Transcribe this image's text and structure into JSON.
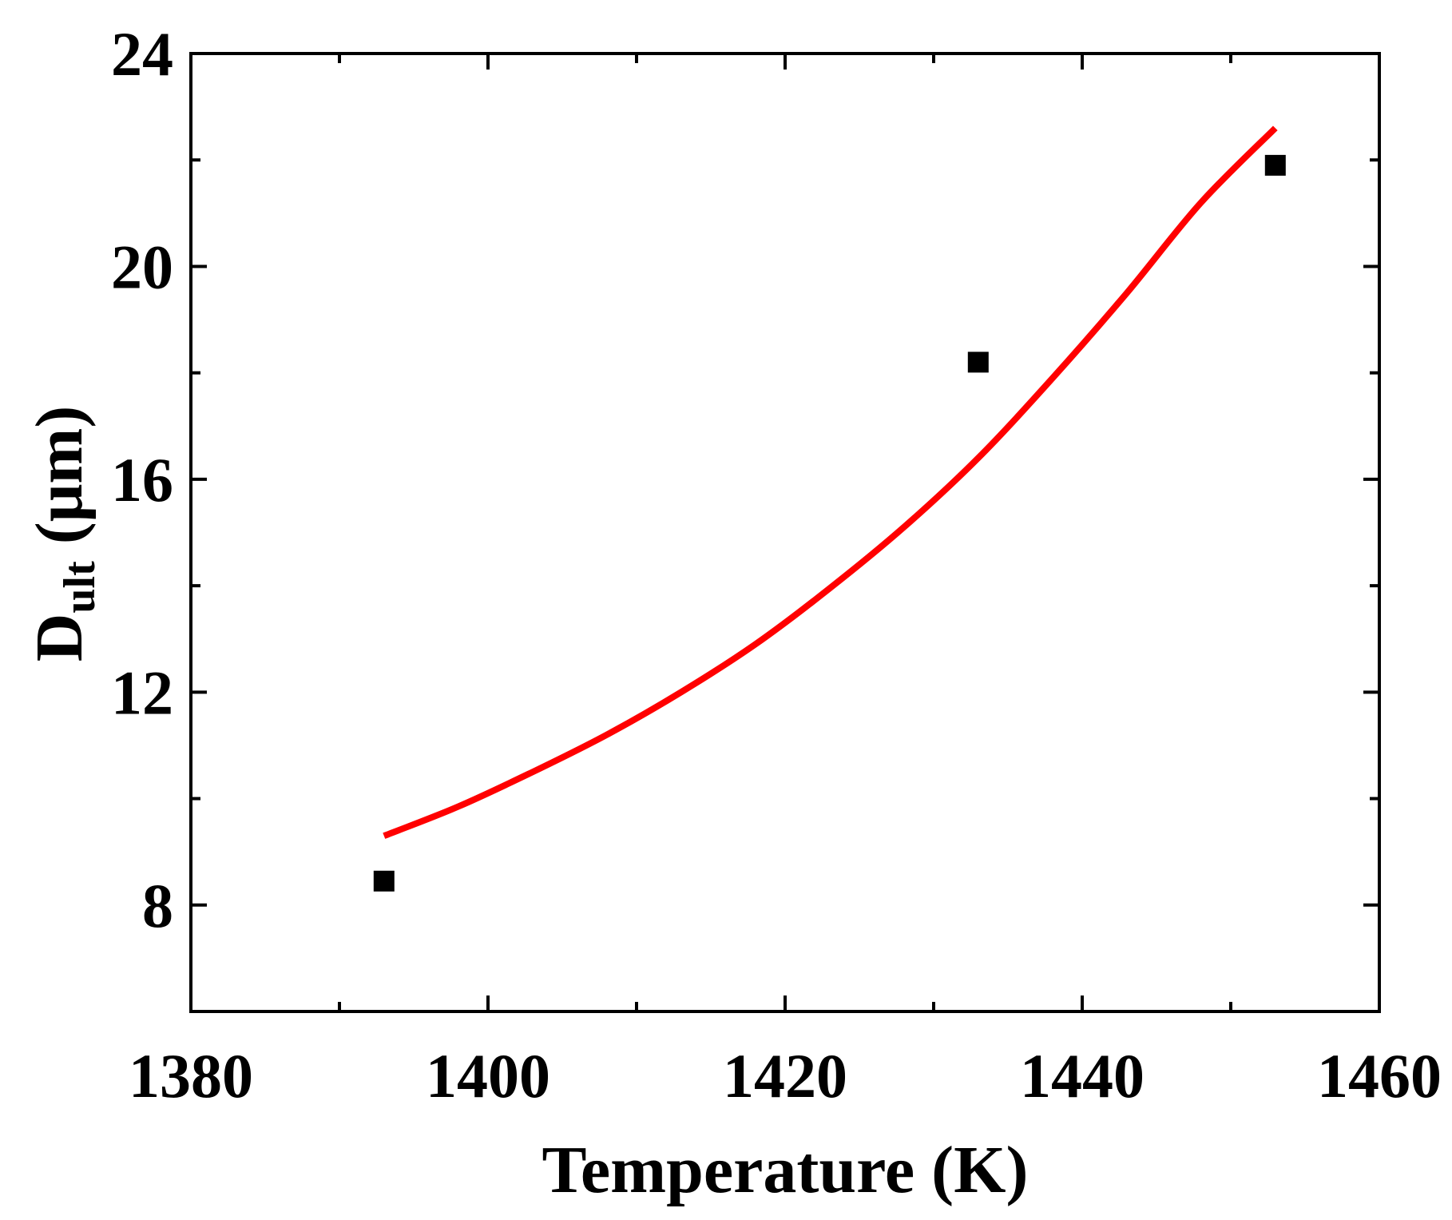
{
  "chart_data": {
    "type": "scatter",
    "title": "",
    "xlabel": "Temperature (K)",
    "ylabel": {
      "main": "D",
      "subscript": "ult",
      "unit": " (μm)"
    },
    "xlim": [
      1380,
      1460
    ],
    "ylim": [
      6,
      24
    ],
    "x_major_ticks": [
      1380,
      1400,
      1420,
      1440,
      1460
    ],
    "x_minor_ticks": [
      1390,
      1410,
      1430,
      1450
    ],
    "x_tick_labels": [
      "1380",
      "1400",
      "1420",
      "1440",
      "1460"
    ],
    "y_major_ticks": [
      8,
      12,
      16,
      20,
      24
    ],
    "y_minor_ticks": [
      10,
      14,
      18,
      22
    ],
    "y_tick_labels": [
      "8",
      "12",
      "16",
      "20",
      "24"
    ],
    "grid": false,
    "series": [
      {
        "kind": "scatter",
        "marker": "square",
        "color": "#000000",
        "points": [
          {
            "x": 1393,
            "y": 8.45
          },
          {
            "x": 1433,
            "y": 18.2
          },
          {
            "x": 1453,
            "y": 21.9
          }
        ]
      },
      {
        "kind": "line",
        "color": "#ff0000",
        "points": [
          {
            "x": 1393,
            "y": 9.3
          },
          {
            "x": 1398,
            "y": 9.85
          },
          {
            "x": 1403,
            "y": 10.5
          },
          {
            "x": 1408,
            "y": 11.2
          },
          {
            "x": 1413,
            "y": 12.0
          },
          {
            "x": 1418,
            "y": 12.9
          },
          {
            "x": 1423,
            "y": 13.95
          },
          {
            "x": 1428,
            "y": 15.1
          },
          {
            "x": 1433,
            "y": 16.4
          },
          {
            "x": 1438,
            "y": 17.9
          },
          {
            "x": 1443,
            "y": 19.5
          },
          {
            "x": 1448,
            "y": 21.2
          },
          {
            "x": 1453,
            "y": 22.6
          }
        ]
      }
    ],
    "colors": {
      "axis": "#000000",
      "fit_line": "#ff0000",
      "markers": "#000000"
    }
  }
}
